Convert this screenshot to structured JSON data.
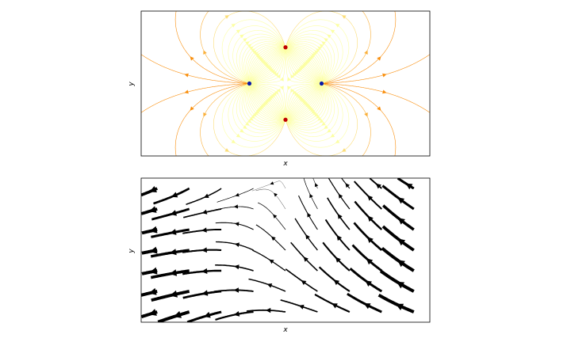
{
  "chart_data": [
    {
      "type": "streamplot",
      "title": "",
      "xlabel": "x",
      "ylabel": "y",
      "grid": false,
      "xlim": [
        -2,
        2
      ],
      "ylim": [
        -1,
        1
      ],
      "colormap": "inferno",
      "sources": [
        {
          "x": -0.5,
          "y": 0.0,
          "color": "#0a1aa8",
          "kind": "source"
        },
        {
          "x": 0.5,
          "y": 0.0,
          "color": "#0a1aa8",
          "kind": "source"
        }
      ],
      "sinks": [
        {
          "x": 0.0,
          "y": 0.5,
          "color": "#c00000",
          "kind": "sink"
        },
        {
          "x": 0.0,
          "y": -0.5,
          "color": "#c00000",
          "kind": "sink"
        }
      ]
    },
    {
      "type": "streamplot",
      "title": "",
      "xlabel": "x",
      "ylabel": "y",
      "grid": false,
      "xlim": [
        -2,
        2
      ],
      "ylim": [
        -1,
        1
      ],
      "color": "#000000",
      "linewidth_varies_with_speed": true
    }
  ]
}
